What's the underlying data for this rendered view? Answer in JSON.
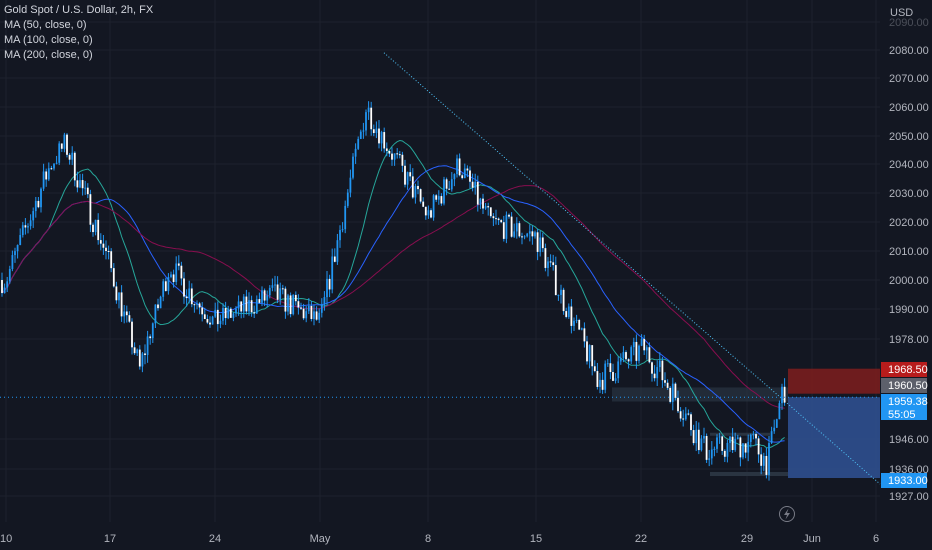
{
  "legend": {
    "title": "Gold Spot / U.S. Dollar, 2h, FX",
    "ma50": "MA (50, close, 0)",
    "ma100": "MA (100, close, 0)",
    "ma200": "MA (200, close, 0)"
  },
  "colors": {
    "background": "#131722",
    "grid": "#1e222d",
    "candle": "#2196f3",
    "ma50": "#26a69a",
    "ma100": "#2962ff",
    "ma200": "#880e4f",
    "trendline": "#4fc3f7",
    "stop_zone": "#7f1d1d",
    "target_zone": "#2f4f8f"
  },
  "axis": {
    "currency": "USD",
    "top_partial_label": "2090.00"
  },
  "chart_data": {
    "type": "candlestick",
    "title": "Gold Spot / U.S. Dollar, 2h, FX",
    "xlabel": "",
    "ylabel": "USD",
    "ylim": [
      1920,
      2093
    ],
    "x_ticks": [
      "10",
      "17",
      "24",
      "May",
      "8",
      "15",
      "22",
      "29",
      "Jun",
      "6"
    ],
    "y_ticks": [
      "1927.00",
      "1936.00",
      "1946.00",
      "1978.00",
      "1990.00",
      "2000.00",
      "2010.00",
      "2020.00",
      "2030.00",
      "2040.00",
      "2050.00",
      "2060.00",
      "2070.00",
      "2080.00"
    ],
    "key_points": [
      {
        "date": "Apr 10",
        "close": 2000
      },
      {
        "date": "Apr 13",
        "close": 2040
      },
      {
        "date": "Apr 14",
        "close": 2047
      },
      {
        "date": "Apr 17",
        "close": 2005
      },
      {
        "date": "Apr 19",
        "close": 1968
      },
      {
        "date": "Apr 21",
        "close": 2005
      },
      {
        "date": "Apr 24",
        "close": 1985
      },
      {
        "date": "Apr 28",
        "close": 1995
      },
      {
        "date": "May 1",
        "close": 1985
      },
      {
        "date": "May 3",
        "close": 2035
      },
      {
        "date": "May 4",
        "close": 2060
      },
      {
        "date": "May 5",
        "close": 2050
      },
      {
        "date": "May 8",
        "close": 2022
      },
      {
        "date": "May 10",
        "close": 2040
      },
      {
        "date": "May 12",
        "close": 2020
      },
      {
        "date": "May 15",
        "close": 2015
      },
      {
        "date": "May 17",
        "close": 1990
      },
      {
        "date": "May 19",
        "close": 1965
      },
      {
        "date": "May 22",
        "close": 1975
      },
      {
        "date": "May 24",
        "close": 1960
      },
      {
        "date": "May 26",
        "close": 1942
      },
      {
        "date": "May 29",
        "close": 1945
      },
      {
        "date": "May 30",
        "close": 1938
      },
      {
        "date": "May 31",
        "close": 1962
      }
    ],
    "price_tags": [
      {
        "label": "1968.50",
        "value": 1968.5,
        "color": "#b71c1c"
      },
      {
        "label": "1960.50",
        "value": 1960.5,
        "color": "#5d606b"
      },
      {
        "label": "1959.38",
        "value": 1959.38,
        "color": "#2196f3"
      },
      {
        "label": "55:05",
        "value": 1955.5,
        "color": "#2196f3"
      },
      {
        "label": "1933.00",
        "value": 1933.0,
        "color": "#2196f3"
      }
    ]
  }
}
